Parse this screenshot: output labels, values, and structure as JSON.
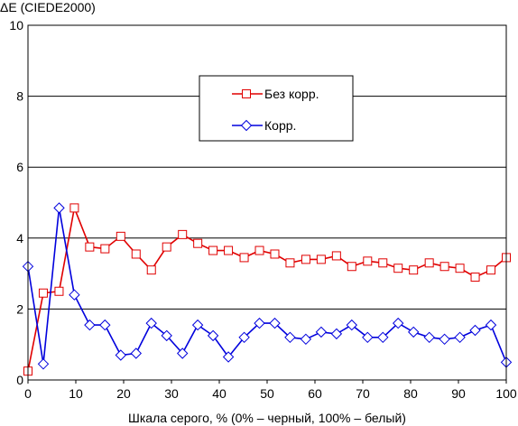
{
  "chart_data": {
    "type": "line",
    "ylabel": "ΔE (CIEDE2000)",
    "xlabel": "Шкала серого, % (0% – черный, 100% – белый)",
    "xlim": [
      0,
      100
    ],
    "ylim": [
      0,
      10
    ],
    "xticks": [
      0,
      10,
      20,
      30,
      40,
      50,
      60,
      70,
      80,
      90,
      100
    ],
    "yticks": [
      0,
      2,
      4,
      6,
      8,
      10
    ],
    "grid": "horizontal",
    "legend_position": "upper-center",
    "series": [
      {
        "name": "Без корр.",
        "color": "#e00000",
        "marker": "square",
        "x": [
          0,
          3.2,
          6.5,
          9.7,
          12.9,
          16.1,
          19.4,
          22.6,
          25.8,
          29.0,
          32.3,
          35.5,
          38.7,
          41.9,
          45.2,
          48.4,
          51.6,
          54.8,
          58.1,
          61.3,
          64.5,
          67.7,
          71.0,
          74.2,
          77.4,
          80.6,
          83.9,
          87.1,
          90.3,
          93.5,
          96.8,
          100
        ],
        "values": [
          0.25,
          2.45,
          2.5,
          4.85,
          3.75,
          3.7,
          4.05,
          3.55,
          3.1,
          3.75,
          4.1,
          3.85,
          3.65,
          3.65,
          3.45,
          3.65,
          3.55,
          3.3,
          3.4,
          3.4,
          3.5,
          3.2,
          3.35,
          3.3,
          3.15,
          3.1,
          3.3,
          3.2,
          3.15,
          2.9,
          3.1,
          3.45
        ]
      },
      {
        "name": "Корр.",
        "color": "#0000dd",
        "marker": "diamond",
        "x": [
          0,
          3.2,
          6.5,
          9.7,
          12.9,
          16.1,
          19.4,
          22.6,
          25.8,
          29.0,
          32.3,
          35.5,
          38.7,
          41.9,
          45.2,
          48.4,
          51.6,
          54.8,
          58.1,
          61.3,
          64.5,
          67.7,
          71.0,
          74.2,
          77.4,
          80.6,
          83.9,
          87.1,
          90.3,
          93.5,
          96.8,
          100
        ],
        "values": [
          3.2,
          0.45,
          4.85,
          2.4,
          1.55,
          1.55,
          0.7,
          0.75,
          1.6,
          1.25,
          0.75,
          1.55,
          1.25,
          0.65,
          1.2,
          1.6,
          1.6,
          1.2,
          1.15,
          1.35,
          1.3,
          1.55,
          1.2,
          1.2,
          1.6,
          1.35,
          1.2,
          1.15,
          1.2,
          1.4,
          1.55,
          0.5
        ]
      }
    ]
  }
}
